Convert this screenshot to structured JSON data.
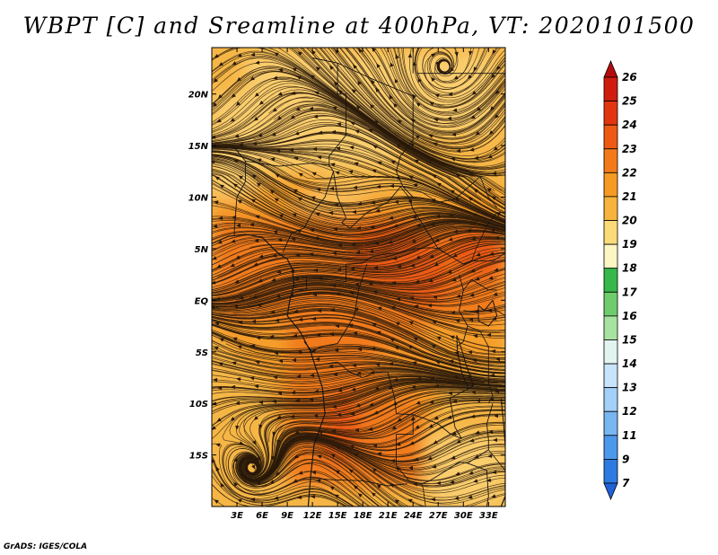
{
  "title": "WBPT [C] and Sreamline at 400hPa, VT: 2020101500",
  "credit": "GrADS: IGES/COLA",
  "map": {
    "lon_range": [
      0,
      35
    ],
    "lat_range": [
      -20,
      24.5
    ],
    "lon_ticks": [
      {
        "value": 3,
        "label": "3E"
      },
      {
        "value": 6,
        "label": "6E"
      },
      {
        "value": 9,
        "label": "9E"
      },
      {
        "value": 12,
        "label": "12E"
      },
      {
        "value": 15,
        "label": "15E"
      },
      {
        "value": 18,
        "label": "18E"
      },
      {
        "value": 21,
        "label": "21E"
      },
      {
        "value": 24,
        "label": "24E"
      },
      {
        "value": 27,
        "label": "27E"
      },
      {
        "value": 30,
        "label": "30E"
      },
      {
        "value": 33,
        "label": "33E"
      }
    ],
    "lat_ticks": [
      {
        "value": 20,
        "label": "20N"
      },
      {
        "value": 15,
        "label": "15N"
      },
      {
        "value": 10,
        "label": "10N"
      },
      {
        "value": 5,
        "label": "5N"
      },
      {
        "value": 0,
        "label": "EQ"
      },
      {
        "value": -5,
        "label": "5S"
      },
      {
        "value": -10,
        "label": "10S"
      },
      {
        "value": -15,
        "label": "15S"
      }
    ],
    "base_color": "#f5b646",
    "colors": {
      "light": "#fad174",
      "mid": "#f59e2a",
      "high": "#f07a1e",
      "peak": "#ea5a16",
      "coast": "#151515",
      "stream": "#2a1a0a"
    },
    "warm_regions": [
      {
        "kind": "high",
        "lon": [
          0,
          35
        ],
        "lat": [
          -2,
          8
        ]
      },
      {
        "kind": "high",
        "lon": [
          9,
          25
        ],
        "lat": [
          -18,
          -2
        ]
      }
    ],
    "cool_regions": [
      {
        "kind": "light",
        "lon": [
          4,
          22
        ],
        "lat": [
          13,
          24
        ]
      },
      {
        "kind": "light",
        "lon": [
          0,
          5
        ],
        "lat": [
          10,
          20
        ]
      },
      {
        "kind": "light",
        "lon": [
          22,
          34
        ],
        "lat": [
          16,
          24
        ]
      },
      {
        "kind": "light",
        "lon": [
          26,
          35
        ],
        "lat": [
          -20,
          -13
        ]
      }
    ],
    "vortices": [
      {
        "name": "northeast-cyclone",
        "lon": 28,
        "lat": 22.5
      },
      {
        "name": "southwest-cyclone",
        "lon": 5,
        "lat": -16.5
      }
    ]
  },
  "colorbar": {
    "levels": [
      "26",
      "25",
      "24",
      "23",
      "22",
      "21",
      "20",
      "19",
      "18",
      "17",
      "16",
      "15",
      "14",
      "13",
      "12",
      "11",
      "9",
      "7"
    ],
    "colors": [
      "#b40c0c",
      "#cf1c0e",
      "#e33610",
      "#ee5a14",
      "#f27a1a",
      "#f59a22",
      "#f6b43c",
      "#fadb78",
      "#fdf6c2",
      "#36b84a",
      "#6ecc6c",
      "#a8e2a0",
      "#e2f4f0",
      "#c8e4fa",
      "#a2d0f8",
      "#78b6f2",
      "#4c98ea",
      "#2d7ae0",
      "#1f62d8"
    ]
  }
}
